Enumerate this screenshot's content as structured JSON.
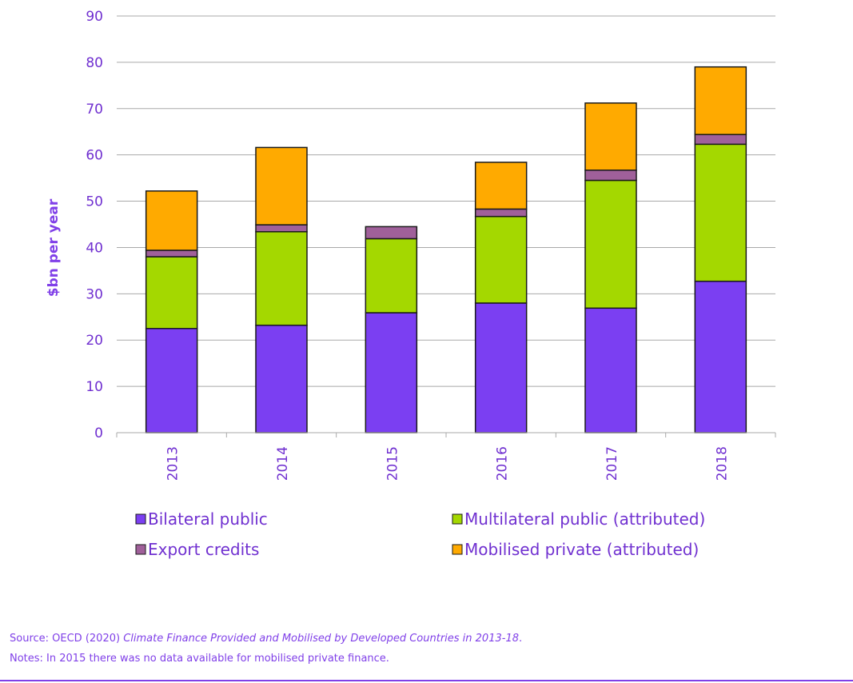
{
  "chart_data": {
    "type": "bar",
    "stacked": true,
    "categories": [
      "2013",
      "2014",
      "2015",
      "2016",
      "2017",
      "2018"
    ],
    "series": [
      {
        "name": "Bilateral public",
        "color": "#7b3ff2",
        "values": [
          22.5,
          23.2,
          25.9,
          28.0,
          26.9,
          32.7
        ]
      },
      {
        "name": "Multilateral public (attributed)",
        "color": "#a4d800",
        "values": [
          15.5,
          20.2,
          16.0,
          18.7,
          27.6,
          29.6
        ]
      },
      {
        "name": "Export credits",
        "color": "#a0609a",
        "values": [
          1.4,
          1.5,
          2.6,
          1.6,
          2.2,
          2.1
        ]
      },
      {
        "name": "Mobilised private (attributed)",
        "color": "#ffaa00",
        "values": [
          12.8,
          16.7,
          null,
          10.1,
          14.5,
          14.6
        ]
      }
    ],
    "ylabel": "$bn per year",
    "xlabel": "",
    "ylim": [
      0,
      90
    ],
    "yticks": [
      "0",
      "10",
      "20",
      "30",
      "40",
      "50",
      "60",
      "70",
      "80",
      "90"
    ],
    "grid": true,
    "legend_placement": "bottom"
  },
  "footer": {
    "source_prefix": "Source: OECD (2020) ",
    "source_title": "Climate Finance Provided and Mobilised by Developed Countries in 2013-18",
    "source_suffix": ".",
    "notes": "Notes: In 2015 there was no data available for mobilised private finance."
  }
}
